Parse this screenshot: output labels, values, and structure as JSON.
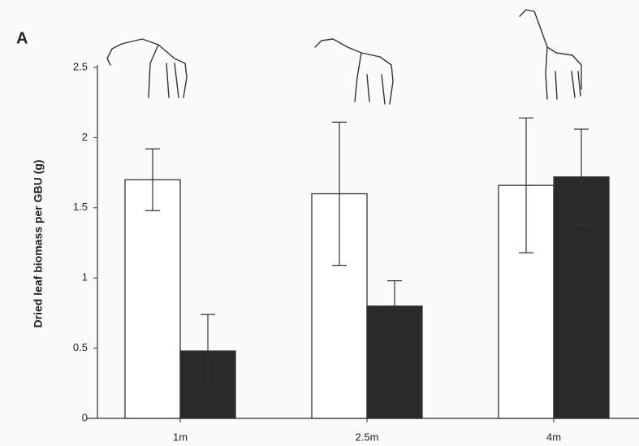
{
  "chart_data": {
    "type": "bar",
    "panel_label": "A",
    "y_label": "Dried leaf biomass per GBU (g)",
    "categories": [
      "1m",
      "2.5m",
      "4m"
    ],
    "series": [
      {
        "color": "#ffffff",
        "values": [
          1.7,
          1.6,
          1.66
        ],
        "errors": [
          0.22,
          0.51,
          0.48
        ]
      },
      {
        "color": "#2a2a2a",
        "values": [
          0.48,
          0.8,
          1.72
        ],
        "errors": [
          0.26,
          0.18,
          0.34
        ]
      }
    ],
    "ylim": [
      0,
      2.5
    ],
    "yticks": [
      0,
      0.5,
      1,
      1.5,
      2,
      2.5
    ],
    "grid": false
  }
}
